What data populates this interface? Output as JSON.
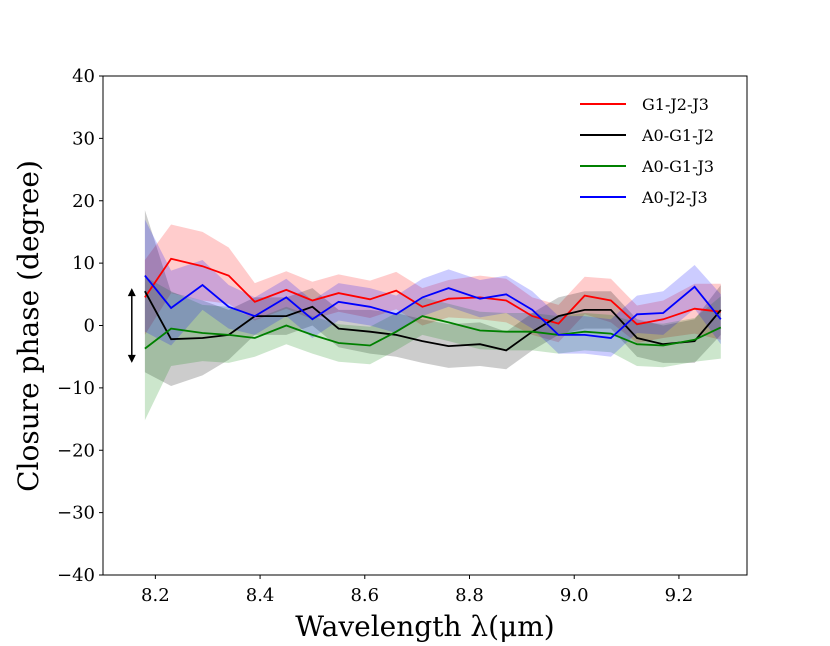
{
  "chart_data": {
    "type": "line",
    "title": "",
    "xlabel": "Wavelength λ(μm)",
    "ylabel": "Closure phase (degree)",
    "xlim": [
      8.1,
      9.33
    ],
    "ylim": [
      -40,
      40
    ],
    "xticks": [
      8.2,
      8.4,
      8.6,
      8.8,
      9.0,
      9.2
    ],
    "xtick_labels": [
      "8.2",
      "8.4",
      "8.6",
      "8.8",
      "9.0",
      "9.2"
    ],
    "yticks": [
      -40,
      -30,
      -20,
      -10,
      0,
      10,
      20,
      30,
      40
    ],
    "ytick_labels": [
      "−40",
      "−30",
      "−20",
      "−10",
      "0",
      "10",
      "20",
      "30",
      "40"
    ],
    "grid": false,
    "legend_position": "top-right",
    "x": [
      8.18,
      8.23,
      8.29,
      8.34,
      8.39,
      8.45,
      8.5,
      8.55,
      8.61,
      8.66,
      8.71,
      8.76,
      8.82,
      8.87,
      8.92,
      8.97,
      9.02,
      9.07,
      9.12,
      9.17,
      9.23,
      9.28
    ],
    "series": [
      {
        "name": "G1-J2-J3",
        "color": "#ff0000",
        "values": [
          4.5,
          10.7,
          9.5,
          8.0,
          3.8,
          5.7,
          4.0,
          5.2,
          4.2,
          5.6,
          3.0,
          4.3,
          4.5,
          4.0,
          1.5,
          0.3,
          4.8,
          4.0,
          0.2,
          1.0,
          2.7,
          2.2
        ],
        "error": [
          6,
          5.5,
          5.5,
          4.5,
          3,
          3,
          3,
          3,
          3,
          3,
          3,
          3,
          3.5,
          3.5,
          3,
          3,
          3,
          3.5,
          3,
          3,
          4,
          4.5
        ]
      },
      {
        "name": "A0-G1-J2",
        "color": "#000000",
        "values": [
          5.5,
          -2.2,
          -2.0,
          -1.5,
          1.5,
          1.5,
          3.0,
          -0.5,
          -1.0,
          -1.5,
          -2.5,
          -3.3,
          -3.0,
          -4.0,
          -1.0,
          1.5,
          2.5,
          2.5,
          -2.0,
          -3.0,
          -2.5,
          2.5
        ],
        "error": [
          13,
          7.5,
          6,
          4,
          3,
          3,
          3,
          3,
          3.5,
          3.5,
          3.5,
          3.5,
          3.5,
          3,
          3,
          3,
          3,
          3,
          3,
          3,
          3.5,
          4
        ]
      },
      {
        "name": "A0-G1-J3",
        "color": "#008000",
        "values": [
          -3.7,
          -0.5,
          -1.2,
          -1.5,
          -2.0,
          0.0,
          -1.5,
          -2.8,
          -3.2,
          -1.0,
          1.5,
          0.5,
          -0.8,
          -1.0,
          -1.0,
          -1.5,
          -1.0,
          -1.3,
          -3.0,
          -3.2,
          -2.3,
          -0.3
        ],
        "error": [
          11.5,
          6,
          4.5,
          4.5,
          3,
          3,
          3,
          3,
          3,
          3,
          3,
          3,
          3,
          3,
          3,
          3,
          3,
          3,
          3.5,
          3.5,
          3.5,
          5
        ]
      },
      {
        "name": "A0-J2-J3",
        "color": "#0000ff",
        "values": [
          8.0,
          2.8,
          6.5,
          3.0,
          1.5,
          4.5,
          1.0,
          3.8,
          3.0,
          1.8,
          4.5,
          6.0,
          4.3,
          5.0,
          2.5,
          -1.5,
          -1.5,
          -2.0,
          1.8,
          2.0,
          6.2,
          1.0
        ],
        "error": [
          9,
          6,
          4,
          3.5,
          3,
          3,
          3,
          3,
          3,
          3,
          3,
          3,
          3,
          3,
          3,
          3,
          3,
          3,
          3,
          3.5,
          3.5,
          4
        ]
      }
    ],
    "annotations": [
      {
        "type": "double-arrow",
        "x": 8.155,
        "y_from": -6,
        "y_to": 6
      }
    ]
  }
}
